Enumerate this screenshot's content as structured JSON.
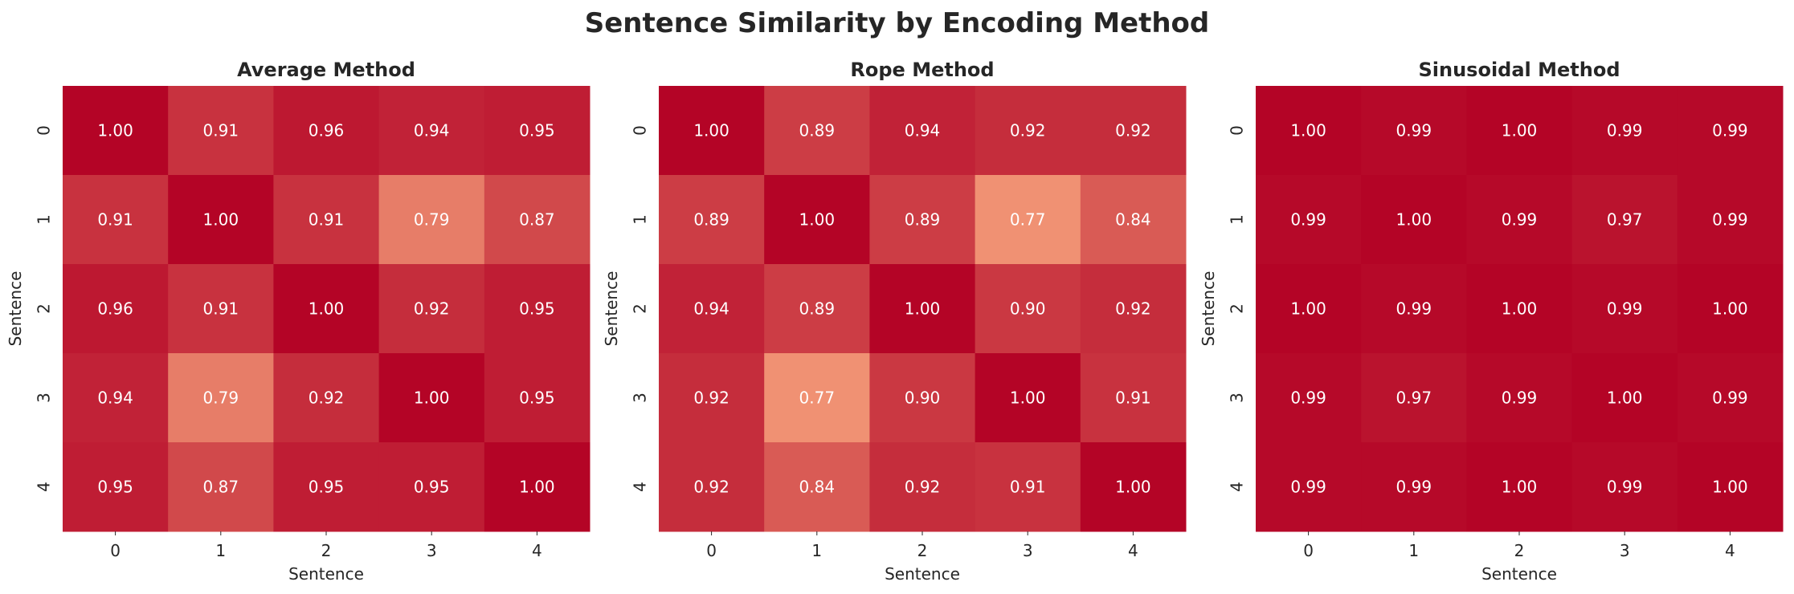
{
  "suptitle": "Sentence Similarity by Encoding Method",
  "colormap": {
    "name": "coolwarm-red-half",
    "low": "#f09173",
    "high": "#b40426"
  },
  "chart_data": [
    {
      "type": "heatmap",
      "title": "Average Method",
      "xlabel": "Sentence",
      "ylabel": "Sentence",
      "x_ticks": [
        "0",
        "1",
        "2",
        "3",
        "4"
      ],
      "y_ticks": [
        "0",
        "1",
        "2",
        "3",
        "4"
      ],
      "values": [
        [
          1.0,
          0.91,
          0.96,
          0.94,
          0.95
        ],
        [
          0.91,
          1.0,
          0.91,
          0.79,
          0.87
        ],
        [
          0.96,
          0.91,
          1.0,
          0.92,
          0.95
        ],
        [
          0.94,
          0.79,
          0.92,
          1.0,
          0.95
        ],
        [
          0.95,
          0.87,
          0.95,
          0.95,
          1.0
        ]
      ],
      "annotations": [
        [
          "1.00",
          "0.91",
          "0.96",
          "0.94",
          "0.95"
        ],
        [
          "0.91",
          "1.00",
          "0.91",
          "0.79",
          "0.87"
        ],
        [
          "0.96",
          "0.91",
          "1.00",
          "0.92",
          "0.95"
        ],
        [
          "0.94",
          "0.79",
          "0.92",
          "1.00",
          "0.95"
        ],
        [
          "0.95",
          "0.87",
          "0.95",
          "0.95",
          "1.00"
        ]
      ]
    },
    {
      "type": "heatmap",
      "title": "Rope Method",
      "xlabel": "Sentence",
      "ylabel": "Sentence",
      "x_ticks": [
        "0",
        "1",
        "2",
        "3",
        "4"
      ],
      "y_ticks": [
        "0",
        "1",
        "2",
        "3",
        "4"
      ],
      "values": [
        [
          1.0,
          0.89,
          0.94,
          0.92,
          0.92
        ],
        [
          0.89,
          1.0,
          0.89,
          0.77,
          0.84
        ],
        [
          0.94,
          0.89,
          1.0,
          0.9,
          0.92
        ],
        [
          0.92,
          0.77,
          0.9,
          1.0,
          0.91
        ],
        [
          0.92,
          0.84,
          0.92,
          0.91,
          1.0
        ]
      ],
      "annotations": [
        [
          "1.00",
          "0.89",
          "0.94",
          "0.92",
          "0.92"
        ],
        [
          "0.89",
          "1.00",
          "0.89",
          "0.77",
          "0.84"
        ],
        [
          "0.94",
          "0.89",
          "1.00",
          "0.90",
          "0.92"
        ],
        [
          "0.92",
          "0.77",
          "0.90",
          "1.00",
          "0.91"
        ],
        [
          "0.92",
          "0.84",
          "0.92",
          "0.91",
          "1.00"
        ]
      ]
    },
    {
      "type": "heatmap",
      "title": "Sinusoidal Method",
      "xlabel": "Sentence",
      "ylabel": "Sentence",
      "x_ticks": [
        "0",
        "1",
        "2",
        "3",
        "4"
      ],
      "y_ticks": [
        "0",
        "1",
        "2",
        "3",
        "4"
      ],
      "values": [
        [
          1.0,
          0.99,
          1.0,
          0.99,
          0.99
        ],
        [
          0.99,
          1.0,
          0.99,
          0.97,
          0.99
        ],
        [
          1.0,
          0.99,
          1.0,
          0.99,
          1.0
        ],
        [
          0.99,
          0.97,
          0.99,
          1.0,
          0.99
        ],
        [
          0.99,
          0.99,
          1.0,
          0.99,
          1.0
        ]
      ],
      "annotations": [
        [
          "1.00",
          "0.99",
          "1.00",
          "0.99",
          "0.99"
        ],
        [
          "0.99",
          "1.00",
          "0.99",
          "0.97",
          "0.99"
        ],
        [
          "1.00",
          "0.99",
          "1.00",
          "0.99",
          "1.00"
        ],
        [
          "0.99",
          "0.97",
          "0.99",
          "1.00",
          "0.99"
        ],
        [
          "0.99",
          "0.99",
          "1.00",
          "0.99",
          "1.00"
        ]
      ]
    }
  ]
}
